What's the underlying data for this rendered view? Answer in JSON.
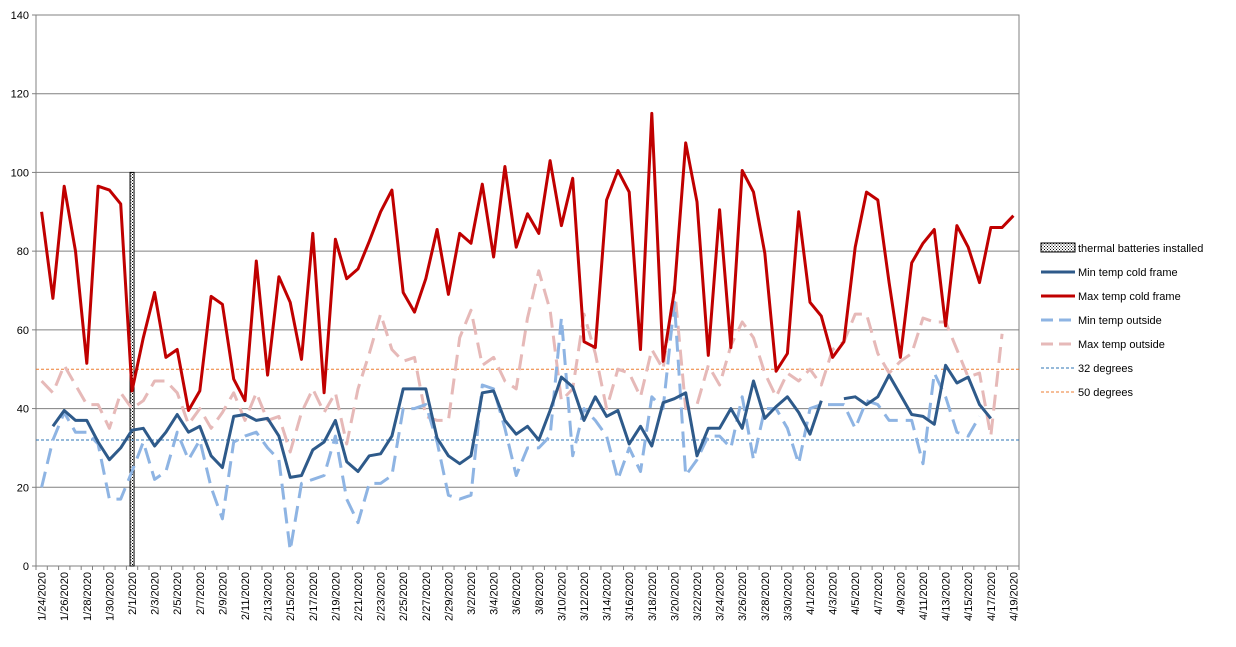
{
  "chart_data": {
    "type": "line",
    "title": "",
    "xlabel": "",
    "ylabel": "",
    "ylim": [
      0,
      140
    ],
    "yticks": [
      0,
      20,
      40,
      60,
      80,
      100,
      120,
      140
    ],
    "grid": true,
    "legend_position": "right",
    "categories": [
      "1/24/2020",
      "1/25/2020",
      "1/26/2020",
      "1/27/2020",
      "1/28/2020",
      "1/29/2020",
      "1/30/2020",
      "1/31/2020",
      "2/1/2020",
      "2/2/2020",
      "2/3/2020",
      "2/4/2020",
      "2/5/2020",
      "2/6/2020",
      "2/7/2020",
      "2/8/2020",
      "2/9/2020",
      "2/10/2020",
      "2/11/2020",
      "2/12/2020",
      "2/13/2020",
      "2/14/2020",
      "2/15/2020",
      "2/16/2020",
      "2/17/2020",
      "2/18/2020",
      "2/19/2020",
      "2/20/2020",
      "2/21/2020",
      "2/22/2020",
      "2/23/2020",
      "2/24/2020",
      "2/25/2020",
      "2/26/2020",
      "2/27/2020",
      "2/28/2020",
      "2/29/2020",
      "3/1/2020",
      "3/2/2020",
      "3/3/2020",
      "3/4/2020",
      "3/5/2020",
      "3/6/2020",
      "3/7/2020",
      "3/8/2020",
      "3/9/2020",
      "3/10/2020",
      "3/11/2020",
      "3/12/2020",
      "3/13/2020",
      "3/14/2020",
      "3/15/2020",
      "3/16/2020",
      "3/17/2020",
      "3/18/2020",
      "3/19/2020",
      "3/20/2020",
      "3/21/2020",
      "3/22/2020",
      "3/23/2020",
      "3/24/2020",
      "3/25/2020",
      "3/26/2020",
      "3/27/2020",
      "3/28/2020",
      "3/29/2020",
      "3/30/2020",
      "3/31/2020",
      "4/1/2020",
      "4/2/2020",
      "4/3/2020",
      "4/4/2020",
      "4/5/2020",
      "4/6/2020",
      "4/7/2020",
      "4/8/2020",
      "4/9/2020",
      "4/10/2020",
      "4/11/2020",
      "4/12/2020",
      "4/13/2020",
      "4/14/2020",
      "4/15/2020",
      "4/16/2020",
      "4/17/2020",
      "4/18/2020",
      "4/19/2020"
    ],
    "tick_labels": [
      "1/24/2020",
      "1/26/2020",
      "1/28/2020",
      "1/30/2020",
      "2/1/2020",
      "2/3/2020",
      "2/5/2020",
      "2/7/2020",
      "2/9/2020",
      "2/11/2020",
      "2/13/2020",
      "2/15/2020",
      "2/17/2020",
      "2/19/2020",
      "2/21/2020",
      "2/23/2020",
      "2/25/2020",
      "2/27/2020",
      "2/29/2020",
      "3/2/2020",
      "3/4/2020",
      "3/6/2020",
      "3/8/2020",
      "3/10/2020",
      "3/12/2020",
      "3/14/2020",
      "3/16/2020",
      "3/18/2020",
      "3/20/2020",
      "3/22/2020",
      "3/24/2020",
      "3/26/2020",
      "3/28/2020",
      "3/30/2020",
      "4/1/2020",
      "4/3/2020",
      "4/5/2020",
      "4/7/2020",
      "4/9/2020",
      "4/11/2020",
      "4/13/2020",
      "4/15/2020",
      "4/17/2020",
      "4/19/2020"
    ],
    "thermal_batteries_date": "2/1/2020",
    "series": [
      {
        "name": "Min temp cold frame",
        "color": "#2e5a8a",
        "dash": "solid",
        "values": [
          null,
          35.5,
          39.5,
          37,
          37,
          31.5,
          27,
          30,
          34.5,
          35,
          30.5,
          34,
          38.5,
          34,
          35.5,
          28,
          25,
          38,
          38.5,
          37,
          37.5,
          33,
          22.5,
          23,
          29.5,
          31.5,
          37,
          26.5,
          24,
          28,
          28.5,
          33,
          45,
          45,
          45,
          32.5,
          28,
          26,
          28,
          44,
          44.5,
          37,
          33.5,
          35.5,
          32,
          39.5,
          48,
          45.5,
          37,
          43,
          38,
          39.5,
          31,
          35.5,
          30.5,
          41.5,
          42.5,
          44,
          28,
          35,
          35,
          40,
          35,
          47,
          37.5,
          40.5,
          43,
          39,
          33.5,
          42,
          null,
          42.5,
          43,
          41,
          43,
          48.5,
          43.5,
          38.5,
          38,
          36,
          51,
          46.5,
          48,
          41,
          37.5,
          null,
          null
        ]
      },
      {
        "name": "Max temp cold frame",
        "color": "#c00000",
        "dash": "solid",
        "values": [
          90,
          68,
          96.5,
          80,
          51.5,
          96.5,
          95.5,
          92,
          44.5,
          58,
          69.5,
          53,
          55,
          39.5,
          44.5,
          68.5,
          66.5,
          47.5,
          42,
          77.5,
          48.5,
          73.5,
          67,
          52.5,
          84.5,
          44,
          83,
          73,
          75.5,
          82.5,
          90,
          95.5,
          69.5,
          64.5,
          73,
          85.5,
          69,
          84.5,
          82,
          97,
          78.5,
          101.5,
          81,
          89.5,
          84.5,
          103,
          86.5,
          98.5,
          57,
          55.5,
          93,
          100.5,
          95,
          55,
          115,
          52,
          70,
          107.5,
          92.5,
          53.5,
          90.5,
          55.5,
          100.5,
          95,
          79.5,
          49.5,
          54,
          90,
          67,
          63.5,
          53,
          57,
          81,
          95,
          93,
          72,
          53,
          77,
          82,
          85.5,
          61,
          86.5,
          81,
          72,
          86,
          86,
          89
        ]
      },
      {
        "name": "Min temp outside",
        "color": "#8eb4e3",
        "dash": "long",
        "values": [
          20,
          32,
          39,
          34,
          34,
          31,
          17,
          17,
          24,
          31.5,
          22,
          24,
          34,
          27,
          32,
          20,
          12,
          31.5,
          33,
          34,
          30,
          27,
          4,
          21,
          22,
          23,
          33,
          17,
          11,
          21,
          21,
          23,
          40,
          40,
          41,
          31.5,
          18,
          17,
          18,
          46,
          45,
          35,
          23,
          30,
          30,
          33,
          63,
          28,
          40,
          37,
          33,
          22,
          30,
          24,
          43,
          40,
          67,
          23,
          27,
          33,
          33,
          30,
          43,
          27,
          40,
          40,
          35,
          26,
          40,
          41,
          41,
          41,
          35,
          42,
          41,
          37,
          37,
          37,
          26,
          49,
          43,
          34,
          33,
          38,
          null,
          null,
          null
        ]
      },
      {
        "name": "Max temp outside",
        "color": "#e6b9b8",
        "dash": "long",
        "values": [
          47,
          44,
          51,
          46,
          41,
          41,
          35,
          44,
          40,
          42,
          47,
          47,
          44,
          36,
          40,
          35,
          39,
          44,
          37,
          44,
          37,
          38,
          29,
          39,
          45,
          39,
          44,
          31,
          45,
          54,
          64,
          55,
          52,
          53,
          38,
          37,
          37,
          58,
          65,
          51,
          53,
          47,
          45,
          63,
          75,
          65,
          42,
          45,
          64,
          54,
          40,
          50,
          49,
          43,
          55,
          50,
          71,
          40,
          41,
          51,
          46,
          56,
          62,
          58,
          49,
          43,
          49,
          47,
          50,
          46,
          55,
          57,
          64,
          64,
          54,
          49,
          52,
          54,
          63,
          62,
          62,
          55,
          48,
          49,
          33,
          59,
          null
        ]
      },
      {
        "name": "32 degrees",
        "color": "#2e75b6",
        "dash": "short",
        "constant": 32
      },
      {
        "name": "50 degrees",
        "color": "#ed7d31",
        "dash": "short",
        "constant": 50
      }
    ]
  },
  "legend": {
    "batteries_label": "thermal batteries installed",
    "min_cold_label": "Min temp cold frame",
    "max_cold_label": "Max temp cold frame",
    "min_out_label": "Min temp outside",
    "max_out_label": "Max temp outside",
    "deg32_label": "32 degrees",
    "deg50_label": "50 degrees"
  }
}
